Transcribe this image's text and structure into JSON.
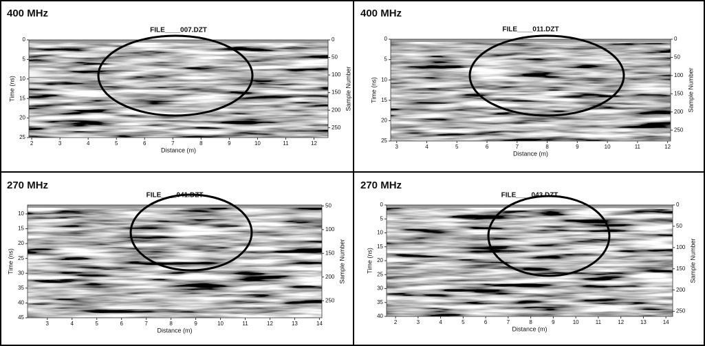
{
  "chart_data": [
    {
      "type": "radargram",
      "label": "400 MHz",
      "title": "FILE____007.DZT",
      "xlabel": "Distance (m)",
      "ylabel": "Time (ns)",
      "y2label": "Sample Number",
      "xlim": [
        1.9,
        12.5
      ],
      "xticks": [
        2,
        3,
        4,
        5,
        6,
        7,
        8,
        9,
        10,
        11,
        12
      ],
      "ylim": [
        0,
        25
      ],
      "yticks": [
        0,
        5,
        10,
        15,
        20,
        25
      ],
      "y_inverted": true,
      "y2lim": [
        0,
        278
      ],
      "y2ticks": [
        0,
        50,
        100,
        150,
        200,
        250
      ]
    },
    {
      "type": "radargram",
      "label": "400 MHz",
      "title": "FILE____011.DZT",
      "xlabel": "Distance (m)",
      "ylabel": "Time (ns)",
      "y2label": "Sample Number",
      "xlim": [
        2.8,
        12.1
      ],
      "xticks": [
        3,
        4,
        5,
        6,
        7,
        8,
        9,
        10,
        11,
        12
      ],
      "ylim": [
        0,
        25
      ],
      "yticks": [
        0,
        5,
        10,
        15,
        20,
        25
      ],
      "y_inverted": true,
      "y2lim": [
        0,
        280
      ],
      "y2ticks": [
        0,
        50,
        100,
        150,
        200,
        250
      ]
    },
    {
      "type": "radargram",
      "label": "270 MHz",
      "title": "FILE____041.DZT",
      "xlabel": "Distance (m)",
      "ylabel": "Time (ns)",
      "y2label": "Sample Number",
      "xlim": [
        2.2,
        14.1
      ],
      "xticks": [
        3,
        4,
        5,
        6,
        7,
        8,
        9,
        10,
        11,
        12,
        13,
        14
      ],
      "ylim": [
        7,
        45
      ],
      "yticks": [
        10,
        15,
        20,
        25,
        30,
        35,
        40,
        45
      ],
      "y_inverted": true,
      "y2lim": [
        48,
        286
      ],
      "y2ticks": [
        50,
        100,
        150,
        200,
        250
      ]
    },
    {
      "type": "radargram",
      "label": "270 MHz",
      "title": "FILE____043.DZT",
      "xlabel": "Distance (m)",
      "ylabel": "Time (ns)",
      "y2label": "Sample Number",
      "xlim": [
        1.6,
        14.3
      ],
      "xticks": [
        2,
        3,
        4,
        5,
        6,
        7,
        8,
        9,
        10,
        11,
        12,
        13,
        14
      ],
      "ylim": [
        0,
        40
      ],
      "yticks": [
        0,
        5,
        10,
        15,
        20,
        25,
        30,
        35,
        40
      ],
      "y_inverted": true,
      "y2lim": [
        0,
        262
      ],
      "y2ticks": [
        0,
        50,
        100,
        150,
        200,
        250
      ]
    }
  ]
}
